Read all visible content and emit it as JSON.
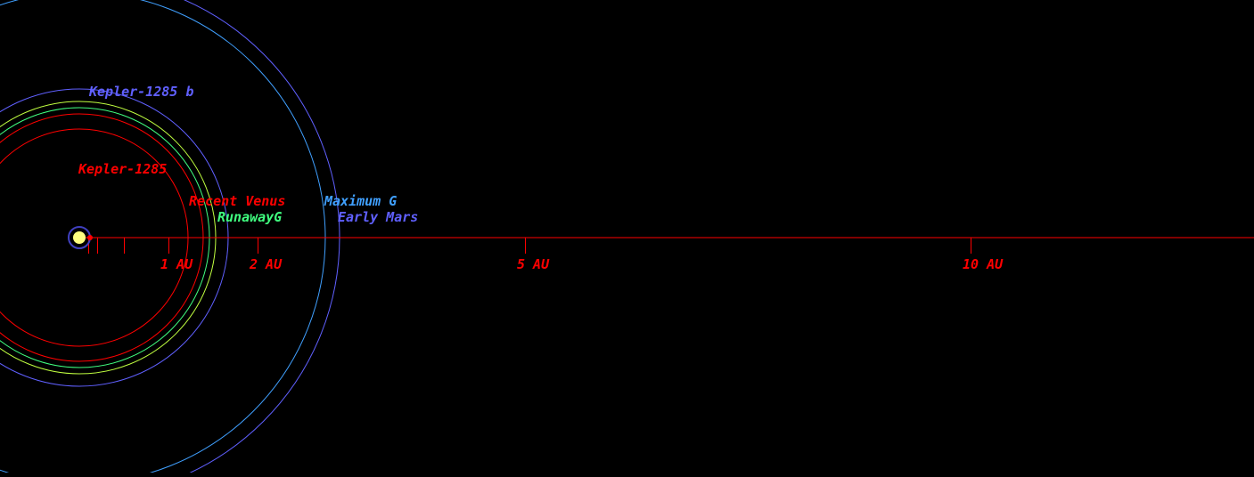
{
  "colors": {
    "background": "#000000",
    "axis": "#ff0000",
    "star": "#ffff80",
    "star_halo": "#4040c0",
    "star_dot": "#ff0000"
  },
  "diagram": {
    "axis_ticks_au": [
      0.1,
      0.2,
      0.5,
      1,
      2,
      5,
      10
    ],
    "axis_labels": [
      {
        "key": "1au",
        "text": "1 AU",
        "au": 1
      },
      {
        "key": "2au",
        "text": "2 AU",
        "au": 2
      },
      {
        "key": "5au",
        "text": "5 AU",
        "au": 5
      },
      {
        "key": "10au",
        "text": "10 AU",
        "au": 10
      }
    ],
    "orbits": [
      {
        "key": "kepler-1285",
        "label": "Kepler-1285",
        "radius_au": 1.22,
        "color": "#ff0000"
      },
      {
        "key": "recent-venus",
        "label": "Recent Venus",
        "radius_au": 1.39,
        "color": "#ff0000"
      },
      {
        "key": "runaway-g",
        "label": "RunawayG",
        "radius_au": 1.46,
        "color": "#40ff80"
      },
      {
        "key": "runaway-g-outer",
        "label": "",
        "radius_au": 1.53,
        "color": "#c0ff40"
      },
      {
        "key": "kepler-1285b",
        "label": "Kepler-1285 b",
        "radius_au": 1.67,
        "color": "#6060ff"
      },
      {
        "key": "maximum-g",
        "label": "Maximum G",
        "radius_au": 2.76,
        "color": "#40a0ff"
      },
      {
        "key": "early-mars",
        "label": "Early Mars",
        "radius_au": 2.92,
        "color": "#6060ff"
      }
    ]
  }
}
